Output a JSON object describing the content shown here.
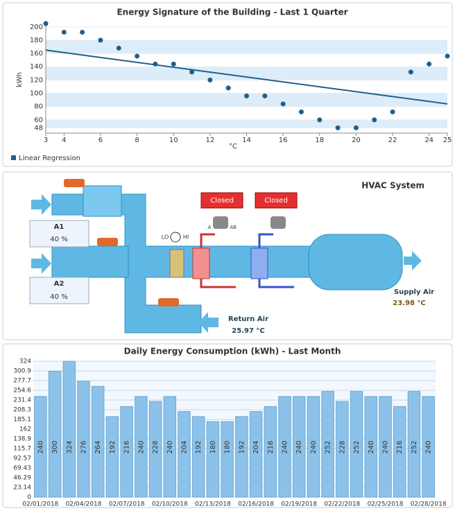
{
  "chart_data": [
    {
      "type": "scatter",
      "title": "Energy Signature of the Building - Last 1 Quarter",
      "x_label": "°C",
      "y_label": "kWh",
      "x": [
        3,
        4,
        5,
        6,
        7,
        8,
        9,
        10,
        11,
        12,
        13,
        14,
        15,
        16,
        17,
        18,
        19,
        20,
        21,
        22,
        23,
        24,
        25
      ],
      "series": [
        {
          "color": "#1f5f8b",
          "values": [
            205,
            192,
            192,
            180,
            168,
            156,
            144,
            144,
            132,
            120,
            108,
            96,
            96,
            84,
            72,
            60,
            48,
            48,
            60,
            72,
            132,
            144,
            156
          ]
        },
        {
          "name": "Linear Regression",
          "type": "line",
          "color": "#1f5f8b",
          "x": [
            3,
            25
          ],
          "values": [
            165,
            84
          ]
        }
      ],
      "xlim": [
        3,
        25
      ],
      "xticks": [
        3,
        4,
        6,
        8,
        10,
        12,
        14,
        16,
        18,
        20,
        22,
        24,
        25
      ],
      "ylim": [
        40,
        205
      ],
      "yticks": [
        48,
        60,
        80,
        100,
        120,
        140,
        160,
        180,
        200
      ],
      "grid": true,
      "legend": "bottom-left"
    },
    {
      "type": "bar",
      "title": "Daily Energy Consumption (kWh) - Last Month",
      "color": "#8cc2ea",
      "categories": [
        "02/01/2018",
        null,
        null,
        "02/04/2018",
        null,
        null,
        "02/07/2018",
        null,
        null,
        "02/10/2018",
        null,
        null,
        "02/13/2018",
        null,
        null,
        "02/16/2018",
        null,
        null,
        "02/19/2018",
        null,
        null,
        "02/22/2018",
        null,
        null,
        "02/25/2018",
        null,
        null,
        "02/28/2018"
      ],
      "values": [
        240,
        300,
        324,
        276,
        264,
        192,
        216,
        240,
        228,
        240,
        204,
        192,
        180,
        180,
        192,
        204,
        216,
        240,
        240,
        240,
        252,
        228,
        252,
        240,
        240,
        216,
        252,
        240
      ],
      "ylim": [
        0,
        324
      ],
      "yticks": [
        0,
        23.14,
        46.29,
        69.43,
        92.57,
        115.7,
        138.9,
        162,
        185.1,
        208.3,
        231.4,
        254.6,
        277.7,
        300.9,
        324
      ],
      "grid": true
    }
  ],
  "hvac": {
    "title": "HVAC System",
    "valves": [
      "Closed",
      "Closed"
    ],
    "dampers": [
      {
        "name": "A1",
        "value": "40 %"
      },
      {
        "name": "A2",
        "value": "40 %"
      }
    ],
    "lo": "LO",
    "hi": "HI",
    "port_a": "A",
    "port_ab": "AB",
    "supply": {
      "label": "Supply Air",
      "value": "23.98 °C"
    },
    "return": {
      "label": "Return Air",
      "value": "25.97 °C"
    }
  }
}
